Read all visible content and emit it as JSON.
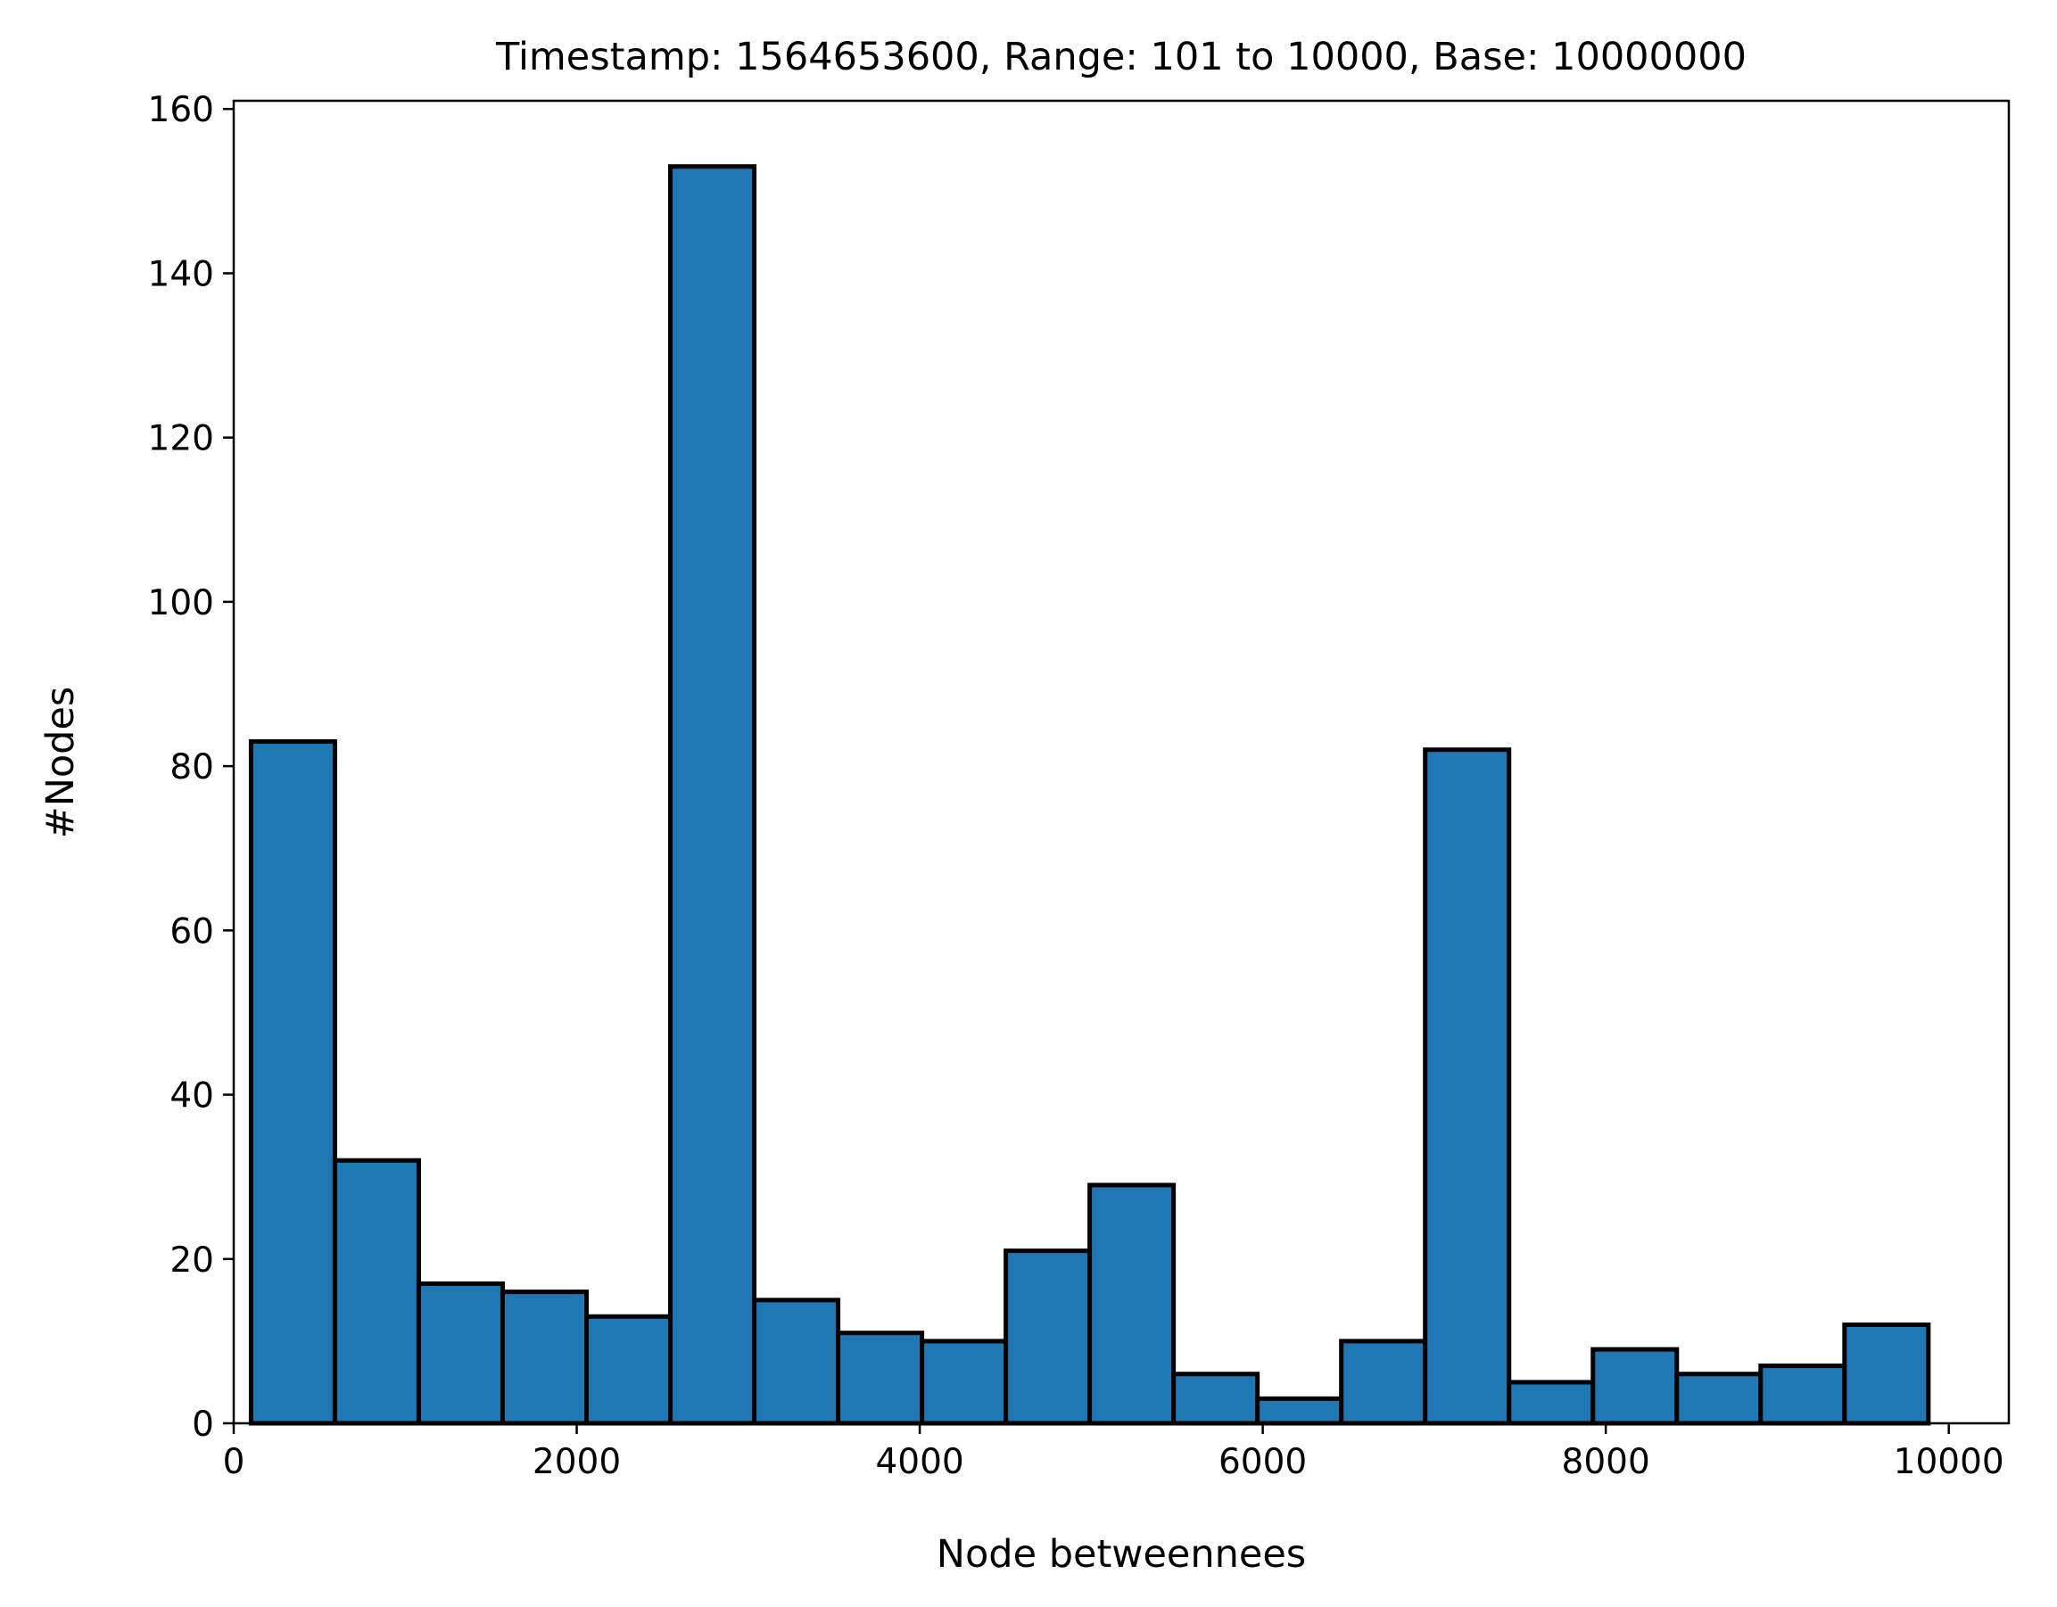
{
  "colors": {
    "bar_fill": "#1f77b4",
    "bar_edge": "#000000",
    "axis": "#000000",
    "background": "#ffffff"
  },
  "chart_data": {
    "type": "bar",
    "title": "Timestamp: 1564653600, Range: 101 to 10000, Base: 10000000",
    "xlabel": "Node betweennees",
    "ylabel": "#Nodes",
    "xlim": [
      0,
      10350
    ],
    "ylim": [
      0,
      161
    ],
    "grid": false,
    "legend": "none",
    "x_ticks": [
      0,
      2000,
      4000,
      6000,
      8000,
      10000
    ],
    "x_tick_labels": [
      "0",
      "2000",
      "4000",
      "6000",
      "8000",
      "10000"
    ],
    "y_ticks": [
      0,
      20,
      40,
      60,
      80,
      100,
      120,
      140,
      160
    ],
    "y_tick_labels": [
      "0",
      "20",
      "40",
      "60",
      "80",
      "100",
      "120",
      "140",
      "160"
    ],
    "bin_edges": [
      101,
      590,
      1079,
      1568,
      2057,
      2546,
      3035,
      3524,
      4013,
      4502,
      4991,
      5480,
      5969,
      6458,
      6947,
      7436,
      7925,
      8414,
      8903,
      9392,
      9881
    ],
    "values": [
      83,
      32,
      17,
      16,
      13,
      153,
      15,
      11,
      10,
      21,
      29,
      6,
      3,
      10,
      82,
      5,
      9,
      6,
      7,
      12
    ]
  }
}
